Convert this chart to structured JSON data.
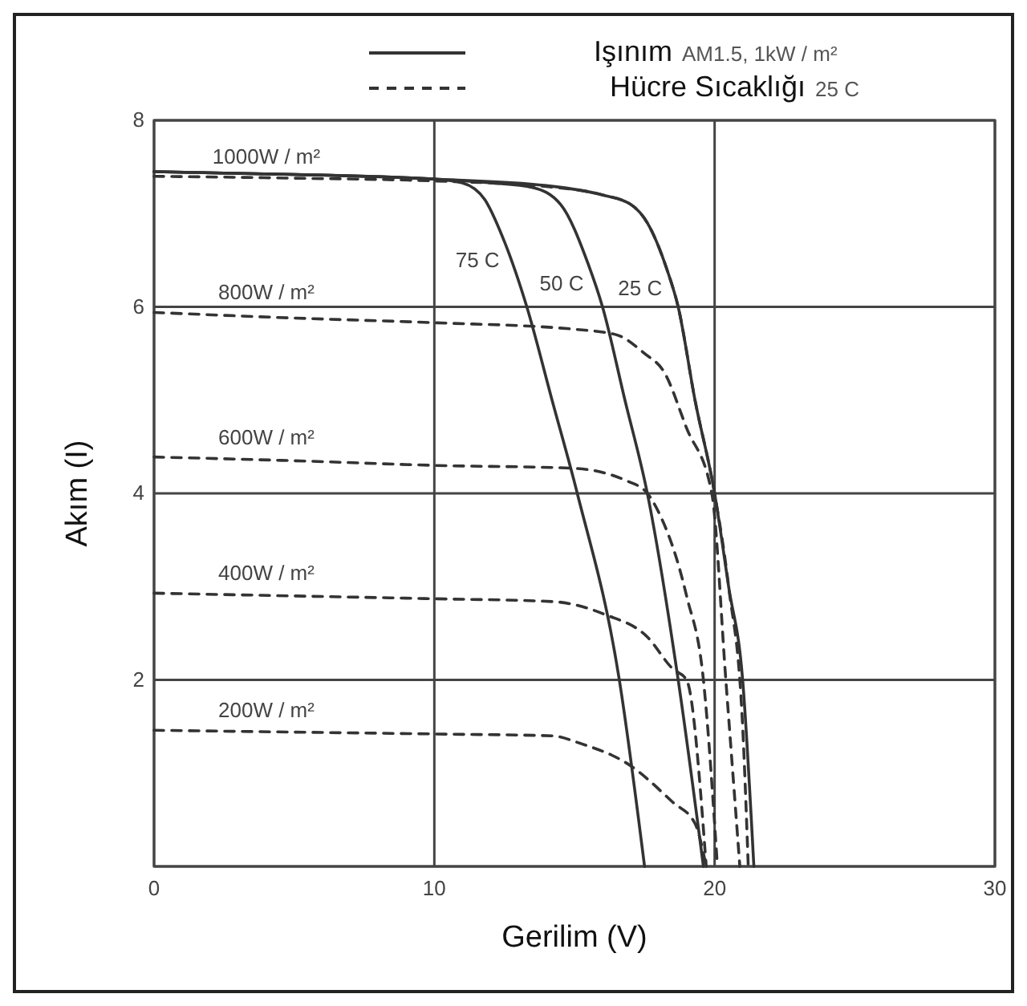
{
  "chart_data": {
    "type": "line",
    "xlabel": "Gerilim (V)",
    "ylabel": "Akım (I)",
    "xlim": [
      0,
      30
    ],
    "xticks": [
      0,
      10,
      20,
      30
    ],
    "ylim": [
      0,
      8
    ],
    "yticks": [
      {
        "value": 0,
        "label": null
      },
      2,
      4,
      6,
      8
    ],
    "grid": true,
    "marker": "none",
    "annotations": [
      "Işınım AM1.5, 1kW / m²",
      "Hücre Sıcaklığı 25 C"
    ],
    "series": [
      {
        "name": "75 C",
        "color": "#333333",
        "line_style": "solid",
        "x": [
          0,
          5,
          10,
          11,
          11.8,
          12.5,
          13.3,
          14.2,
          15.1,
          16.6,
          17.5
        ],
        "values": [
          7.45,
          7.42,
          7.37,
          7.33,
          7.15,
          6.7,
          6.0,
          5.0,
          4.0,
          2.0,
          0
        ]
      },
      {
        "name": "50 C",
        "color": "#333333",
        "line_style": "solid",
        "x": [
          0,
          5,
          10,
          12,
          13.5,
          14.5,
          15.5,
          16,
          16.8,
          17.6,
          18.7,
          19.6
        ],
        "values": [
          7.45,
          7.42,
          7.37,
          7.33,
          7.28,
          7.1,
          6.45,
          6.0,
          5.0,
          4.0,
          2.0,
          0
        ]
      },
      {
        "name": "25 C",
        "color": "#333333",
        "line_style": "solid",
        "x": [
          0,
          5,
          10,
          14,
          16,
          17,
          17.6,
          18.3,
          18.7,
          19.3,
          20,
          20.5,
          21,
          21.4
        ],
        "values": [
          7.45,
          7.42,
          7.37,
          7.3,
          7.2,
          7.1,
          6.9,
          6.4,
          6.0,
          5.0,
          4.0,
          3.0,
          2.0,
          0
        ]
      },
      {
        "name": "1000W / m²",
        "color": "#333333",
        "line_style": "dashed",
        "x": [
          0,
          5,
          10,
          14,
          16,
          17,
          17.6,
          18.3,
          18.7,
          19.3,
          20,
          20.5,
          21,
          21.2
        ],
        "values": [
          7.4,
          7.38,
          7.35,
          7.29,
          7.2,
          7.1,
          6.9,
          6.4,
          6.0,
          5.0,
          4.0,
          3.0,
          1.5,
          0
        ]
      },
      {
        "name": "800W / m²",
        "color": "#333333",
        "line_style": "dashed",
        "x": [
          0,
          5,
          10,
          15,
          16.5,
          17.5,
          18.2,
          19,
          19.9,
          20.4,
          20.9
        ],
        "values": [
          5.94,
          5.88,
          5.83,
          5.76,
          5.7,
          5.5,
          5.3,
          4.7,
          4.0,
          2.0,
          0
        ]
      },
      {
        "name": "600W / m²",
        "color": "#333333",
        "line_style": "dashed",
        "x": [
          0,
          5,
          10,
          14.9,
          16.9,
          17.6,
          18,
          19,
          19.6,
          20.1
        ],
        "values": [
          4.39,
          4.35,
          4.3,
          4.27,
          4.13,
          4.0,
          3.8,
          2.9,
          2.0,
          0
        ]
      },
      {
        "name": "400W / m²",
        "color": "#333333",
        "line_style": "dashed",
        "x": [
          0,
          5,
          10,
          14.2,
          16.1,
          17.6,
          18.5,
          19,
          19.7
        ],
        "values": [
          2.93,
          2.9,
          2.87,
          2.84,
          2.7,
          2.46,
          2.12,
          2.0,
          0
        ]
      },
      {
        "name": "200W / m²",
        "color": "#333333",
        "line_style": "dashed",
        "x": [
          0,
          5,
          10,
          14.2,
          15.2,
          17,
          18.5,
          19.3,
          19.7
        ],
        "values": [
          1.46,
          1.44,
          1.42,
          1.4,
          1.32,
          1.08,
          0.69,
          0.46,
          0
        ]
      }
    ]
  }
}
